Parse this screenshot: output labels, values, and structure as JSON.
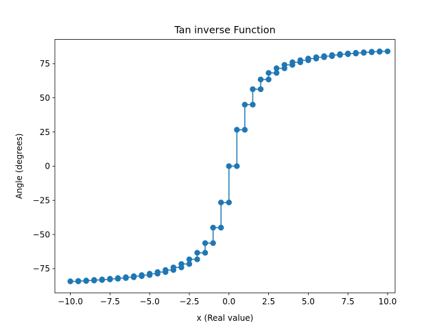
{
  "chart_data": {
    "type": "line",
    "title": "Tan inverse Function",
    "xlabel": "x (Real value)",
    "ylabel": "Angle (degrees)",
    "xlim": [
      -10.975,
      10.475
    ],
    "ylim": [
      -92.68,
      92.68
    ],
    "xticks": [
      -10.0,
      -7.5,
      -5.0,
      -2.5,
      0.0,
      2.5,
      5.0,
      7.5,
      10.0
    ],
    "xtick_labels": [
      "−10.0",
      "−7.5",
      "−5.0",
      "−2.5",
      "0.0",
      "2.5",
      "5.0",
      "7.5",
      "10.0"
    ],
    "yticks": [
      -75,
      -50,
      -25,
      0,
      25,
      50,
      75
    ],
    "ytick_labels": [
      "−75",
      "−50",
      "−25",
      "0",
      "25",
      "50",
      "75"
    ],
    "grid": false,
    "marker": "o",
    "drawstyle": "steps",
    "series": [
      {
        "name": "",
        "color": "#1f77b4",
        "x": [
          -10.0,
          -9.5,
          -9.0,
          -8.5,
          -8.0,
          -7.5,
          -7.0,
          -6.5,
          -6.0,
          -5.5,
          -5.0,
          -4.5,
          -4.0,
          -3.5,
          -3.0,
          -2.5,
          -2.0,
          -1.5,
          -1.0,
          -0.5,
          0.0,
          0.5,
          1.0,
          1.5,
          2.0,
          2.5,
          3.0,
          3.5,
          4.0,
          4.5,
          5.0,
          5.5,
          6.0,
          6.5,
          7.0,
          7.5,
          8.0,
          8.5,
          9.0,
          9.5
        ],
        "y": [
          -84.3,
          -84.0,
          -83.7,
          -83.3,
          -82.9,
          -82.4,
          -81.9,
          -81.3,
          -80.5,
          -79.7,
          -78.7,
          -77.5,
          -76.0,
          -74.1,
          -71.6,
          -68.2,
          -63.4,
          -56.3,
          -45.0,
          -26.6,
          0.0,
          26.6,
          45.0,
          56.3,
          63.4,
          68.2,
          71.6,
          74.1,
          76.0,
          77.5,
          78.7,
          79.7,
          80.5,
          81.3,
          81.9,
          82.4,
          82.9,
          83.3,
          83.7,
          84.0
        ]
      }
    ]
  }
}
